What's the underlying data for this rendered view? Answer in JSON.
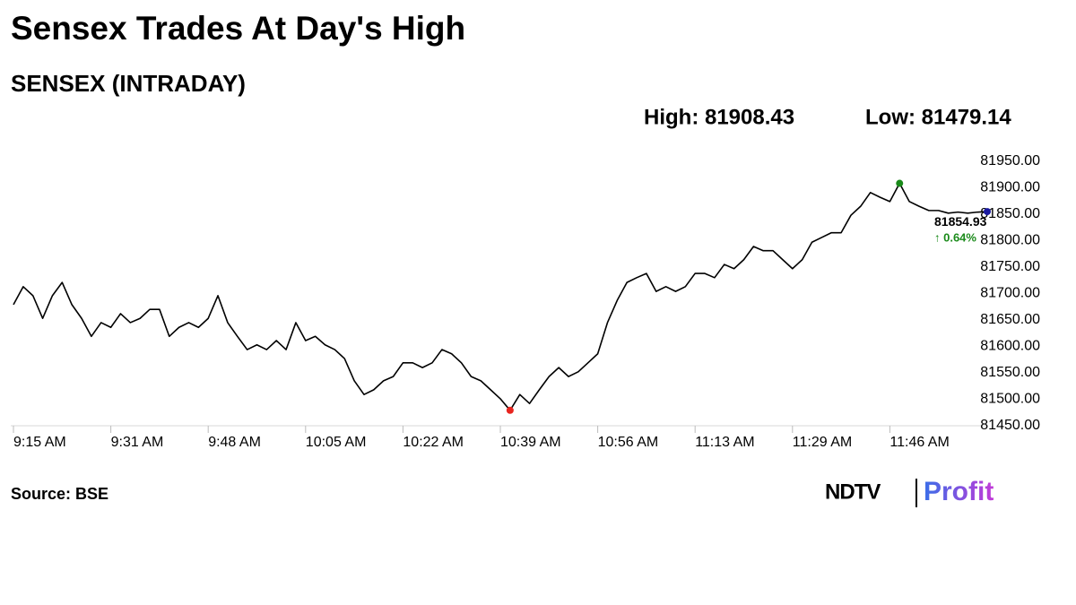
{
  "chart_data": {
    "type": "line",
    "title": "Sensex Trades At Day's High",
    "subtitle": "SENSEX (INTRADAY)",
    "high_label": "High: 81908.43",
    "low_label": "Low: 81479.14",
    "last_value_label": "81854.93",
    "change_label": "↑ 0.64%",
    "source": "Source: BSE",
    "logo": {
      "left": "NDTV",
      "right": "Profit"
    },
    "categories": [
      "9:15 AM",
      null,
      null,
      null,
      null,
      null,
      null,
      null,
      null,
      null,
      "9:31 AM",
      null,
      null,
      null,
      null,
      null,
      null,
      null,
      null,
      null,
      "9:48 AM",
      null,
      null,
      null,
      null,
      null,
      null,
      null,
      null,
      null,
      "10:05 AM",
      null,
      null,
      null,
      null,
      null,
      null,
      null,
      null,
      null,
      "10:22 AM",
      null,
      null,
      null,
      null,
      null,
      null,
      null,
      null,
      null,
      "10:39 AM",
      null,
      null,
      null,
      null,
      null,
      null,
      null,
      null,
      null,
      "10:56 AM",
      null,
      null,
      null,
      null,
      null,
      null,
      null,
      null,
      null,
      "11:13 AM",
      null,
      null,
      null,
      null,
      null,
      null,
      null,
      null,
      null,
      "11:29 AM",
      null,
      null,
      null,
      null,
      null,
      null,
      null,
      null,
      null,
      "11:46 AM",
      null,
      null,
      null,
      null,
      null,
      null,
      null,
      null,
      null,
      null
    ],
    "series": [
      {
        "color": "#000000",
        "values": [
          81679,
          81713,
          81696,
          81653,
          81696,
          81721,
          81679,
          81653,
          81619,
          81645,
          81636,
          81662,
          81645,
          81653,
          81670,
          81670,
          81619,
          81636,
          81645,
          81636,
          81653,
          81696,
          81645,
          81619,
          81594,
          81603,
          81594,
          81611,
          81594,
          81645,
          81611,
          81619,
          81603,
          81594,
          81577,
          81535,
          81509,
          81518,
          81535,
          81543,
          81569,
          81569,
          81560,
          81569,
          81594,
          81586,
          81569,
          81543,
          81535,
          81518,
          81501,
          81479.14,
          81509,
          81492,
          81518,
          81543,
          81560,
          81543,
          81552,
          81569,
          81586,
          81645,
          81687,
          81721,
          81730,
          81738,
          81704,
          81713,
          81704,
          81713,
          81738,
          81738,
          81730,
          81755,
          81747,
          81764,
          81789,
          81781,
          81781,
          81764,
          81747,
          81764,
          81797,
          81806,
          81815,
          81815,
          81848,
          81865,
          81891,
          81882,
          81874,
          81908.43,
          81874,
          81865,
          81857,
          81857,
          81852,
          81854,
          81852,
          81854,
          81854.93
        ]
      }
    ],
    "high_color": "#1a8a1a",
    "low_color": "#e8251f",
    "last_color": "#1a1aa0",
    "change_color": "#1a8a1a",
    "ylim": [
      81450,
      81950
    ],
    "yticks": [
      {
        "value": 81450,
        "label": "81450.00"
      },
      {
        "value": 81500,
        "label": "81500.00"
      },
      {
        "value": 81550,
        "label": "81550.00"
      },
      {
        "value": 81600,
        "label": "81600.00"
      },
      {
        "value": 81650,
        "label": "81650.00"
      },
      {
        "value": 81700,
        "label": "81700.00"
      },
      {
        "value": 81750,
        "label": "81750.00"
      },
      {
        "value": 81800,
        "label": "81800.00"
      },
      {
        "value": 81850,
        "label": "81850.00"
      },
      {
        "value": 81900,
        "label": "81900.00"
      },
      {
        "value": 81950,
        "label": "81950.00"
      }
    ],
    "grid": false
  }
}
